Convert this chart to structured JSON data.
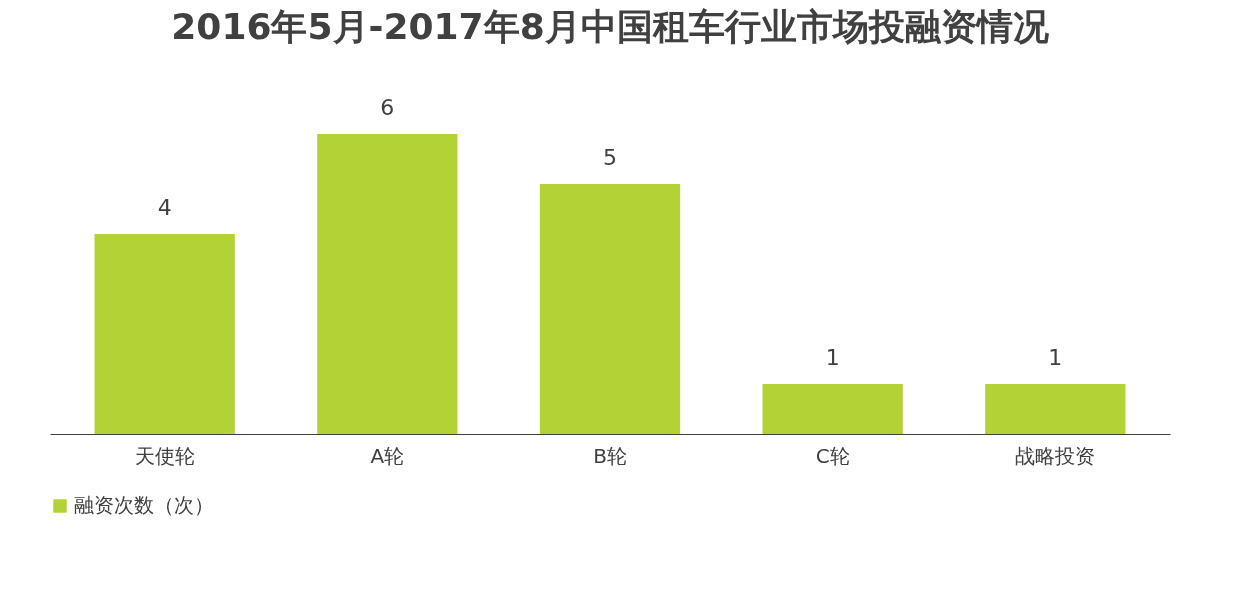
{
  "chart_data": {
    "type": "bar",
    "title": "2016年5月-2017年8月中国租车行业市场投融资情况",
    "categories": [
      "天使轮",
      "A轮",
      "B轮",
      "C轮",
      "战略投资"
    ],
    "series": [
      {
        "name": "融资次数（次）",
        "color": "#b2d235",
        "values": [
          4,
          6,
          5,
          1,
          1
        ]
      }
    ],
    "data_labels": true,
    "grid": false,
    "legend": "bottom"
  }
}
